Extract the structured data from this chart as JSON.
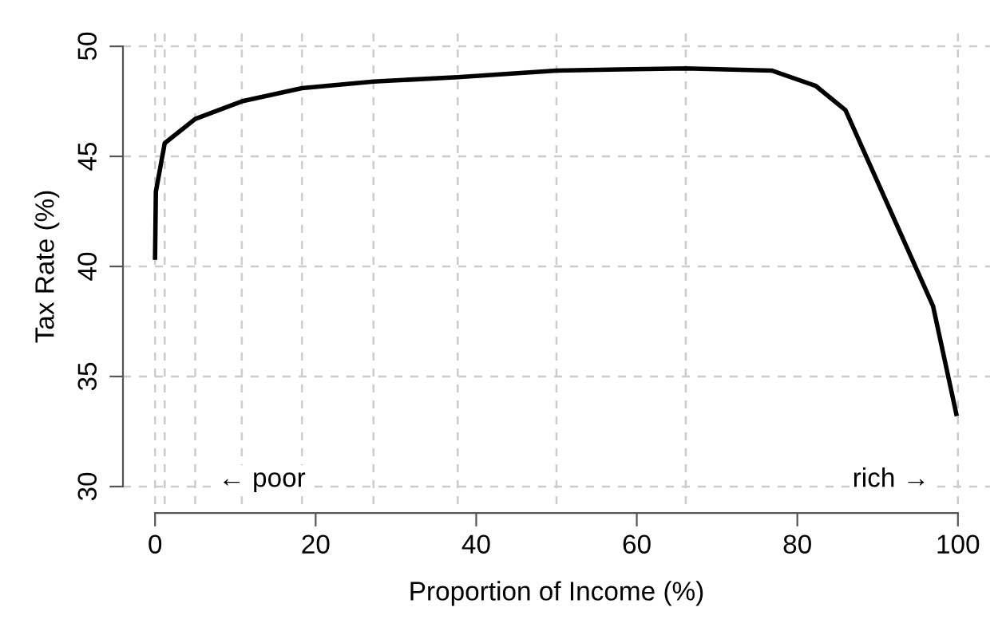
{
  "chart_data": {
    "type": "line",
    "xlabel": "Proportion of Income (%)",
    "ylabel": "Tax Rate (%)",
    "x": [
      0,
      0.1,
      1.2,
      5.0,
      10.8,
      18.3,
      27.2,
      37.7,
      50.0,
      66.1,
      76.8,
      82.3,
      86.0,
      96.9,
      99.8
    ],
    "series": [
      {
        "color": "#000000",
        "values": [
          40.4,
          43.4,
          45.6,
          46.7,
          47.5,
          48.1,
          48.4,
          48.6,
          48.9,
          49.0,
          48.9,
          48.2,
          47.1,
          38.2,
          33.3
        ]
      }
    ],
    "xlim": [
      -4,
      104
    ],
    "ylim": [
      29.2,
      50.8
    ],
    "xticks": [
      0,
      20,
      40,
      60,
      80,
      100
    ],
    "yticks": [
      30,
      35,
      40,
      45,
      50
    ],
    "grid": "y",
    "marker": "none",
    "line_style": "solid",
    "ref_lines": [
      {
        "axis": "x",
        "value": 0,
        "color": "#cccccc",
        "line_style": "dashed"
      },
      {
        "axis": "x",
        "value": 1.2,
        "color": "#cccccc",
        "line_style": "dashed"
      },
      {
        "axis": "x",
        "value": 5.0,
        "color": "#cccccc",
        "line_style": "dashed"
      },
      {
        "axis": "x",
        "value": 10.8,
        "color": "#cccccc",
        "line_style": "dashed"
      },
      {
        "axis": "x",
        "value": 18.3,
        "color": "#cccccc",
        "line_style": "dashed"
      },
      {
        "axis": "x",
        "value": 27.2,
        "color": "#cccccc",
        "line_style": "dashed"
      },
      {
        "axis": "x",
        "value": 37.7,
        "color": "#cccccc",
        "line_style": "dashed"
      },
      {
        "axis": "x",
        "value": 50.0,
        "color": "#cccccc",
        "line_style": "dashed"
      },
      {
        "axis": "x",
        "value": 66.1,
        "color": "#cccccc",
        "line_style": "dashed"
      },
      {
        "axis": "x",
        "value": 100,
        "color": "#cccccc",
        "line_style": "dashed"
      }
    ],
    "annotations": [
      "← poor",
      "rich →"
    ]
  }
}
